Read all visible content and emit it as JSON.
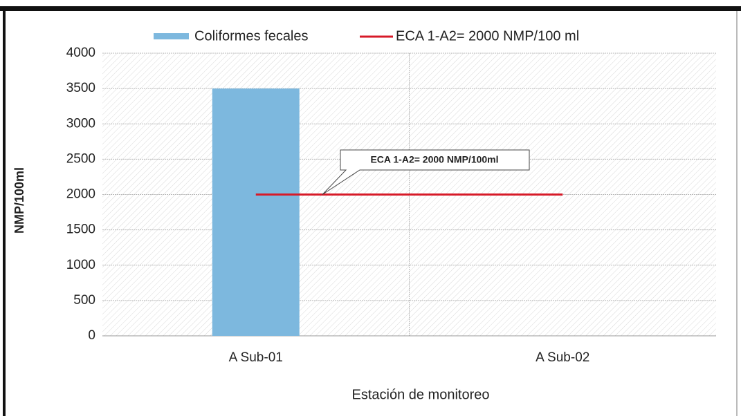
{
  "chart_data": {
    "type": "bar",
    "categories": [
      "A Sub-01",
      "A Sub-02"
    ],
    "series": [
      {
        "name": "Coliformes fecales",
        "type": "bar",
        "color": "#7db8de",
        "values": [
          3500,
          null
        ]
      },
      {
        "name": "ECA 1-A2= 2000 NMP/100 ml",
        "type": "line",
        "color": "#d71a28",
        "values": [
          2000,
          2000
        ]
      }
    ],
    "ylim": [
      0,
      4000
    ],
    "yticks": [
      0,
      500,
      1000,
      1500,
      2000,
      2500,
      3000,
      3500,
      4000
    ],
    "y_label": "NMP/100ml",
    "x_label": "Estación de monitoreo",
    "annotation": "ECA 1-A2= 2000 NMP/100ml",
    "grid": true,
    "legend": "top"
  }
}
